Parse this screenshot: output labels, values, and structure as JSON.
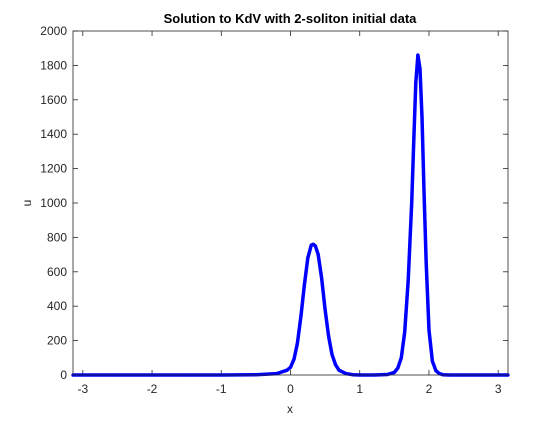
{
  "chart_data": {
    "type": "line",
    "title": "Solution to KdV with 2-soliton initial data",
    "xlabel": "x",
    "ylabel": "u",
    "xlim": [
      -3.1416,
      3.1416
    ],
    "ylim": [
      0,
      2000
    ],
    "xticks": [
      -3,
      -2,
      -1,
      0,
      1,
      2,
      3
    ],
    "xtick_labels": [
      "-3",
      "-2",
      "-1",
      "0",
      "1",
      "2",
      "3"
    ],
    "yticks": [
      0,
      200,
      400,
      600,
      800,
      1000,
      1200,
      1400,
      1600,
      1800,
      2000
    ],
    "ytick_labels": [
      "0",
      "200",
      "400",
      "600",
      "800",
      "1000",
      "1200",
      "1400",
      "1600",
      "1800",
      "2000"
    ],
    "grid": false,
    "box": true,
    "line_color": "#0000ff",
    "series": [
      {
        "x": [
          -3.14,
          -2.5,
          -2.0,
          -1.5,
          -1.0,
          -0.5,
          -0.2,
          -0.05,
          0.0,
          0.05,
          0.1,
          0.15,
          0.2,
          0.25,
          0.3,
          0.33,
          0.36,
          0.4,
          0.45,
          0.5,
          0.55,
          0.6,
          0.65,
          0.7,
          0.8,
          0.9,
          1.0,
          1.2,
          1.4,
          1.5,
          1.55,
          1.6,
          1.65,
          1.7,
          1.75,
          1.78,
          1.81,
          1.84,
          1.87,
          1.9,
          1.93,
          1.96,
          2.0,
          2.05,
          2.1,
          2.15,
          2.2,
          2.3,
          2.5,
          2.8,
          3.14
        ],
        "y": [
          0,
          0,
          0,
          0,
          0,
          1,
          8,
          28,
          45,
          92,
          185,
          340,
          520,
          680,
          755,
          760,
          750,
          700,
          560,
          380,
          225,
          120,
          60,
          28,
          8,
          2,
          0,
          0,
          3,
          15,
          40,
          100,
          250,
          550,
          1000,
          1350,
          1700,
          1860,
          1780,
          1500,
          1050,
          650,
          260,
          80,
          25,
          8,
          2,
          0,
          0,
          0,
          0
        ]
      }
    ]
  }
}
